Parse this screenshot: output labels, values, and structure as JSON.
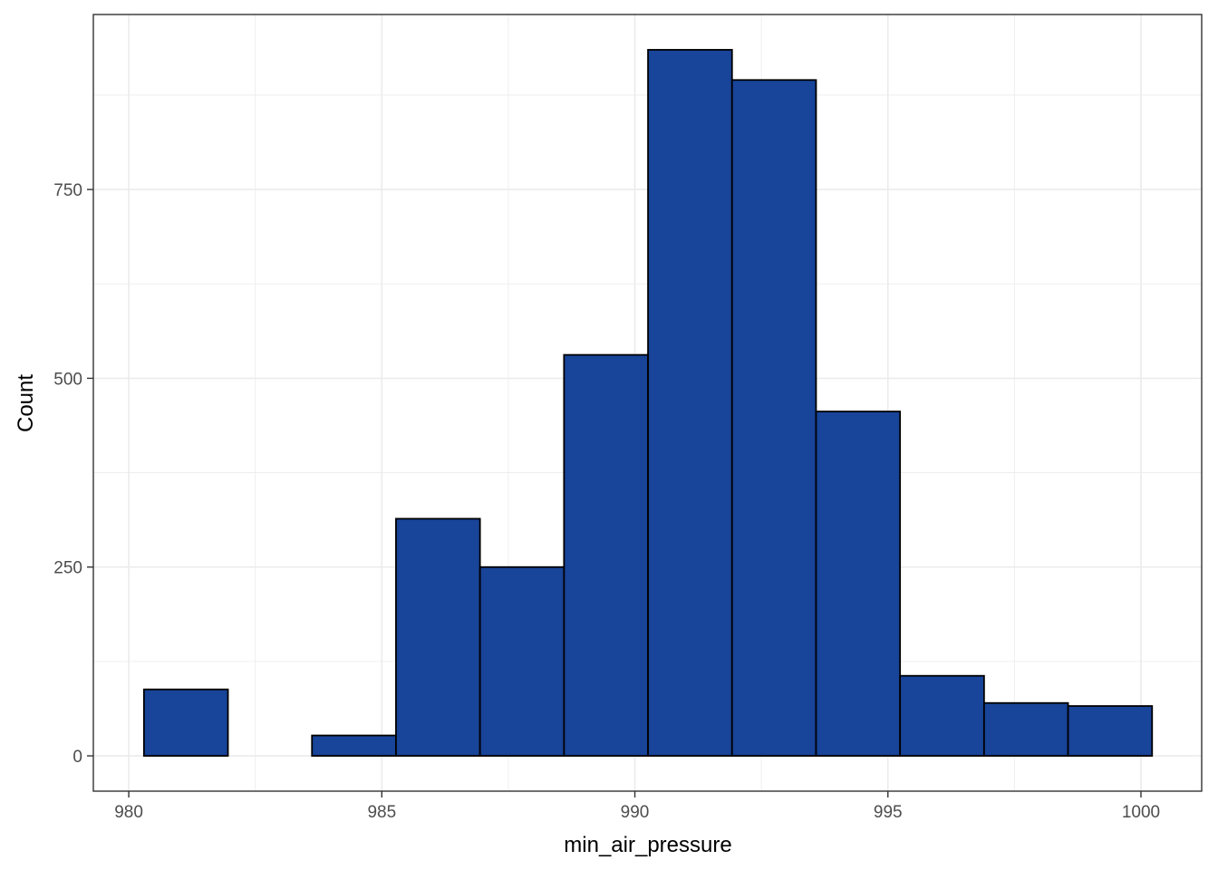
{
  "chart_data": {
    "type": "bar",
    "subtype": "histogram",
    "title": "",
    "xlabel": "min_air_pressure",
    "ylabel": "Count",
    "bins": [
      {
        "x0": 980.3,
        "x1": 981.96,
        "count": 88
      },
      {
        "x0": 981.96,
        "x1": 983.62,
        "count": 0
      },
      {
        "x0": 983.62,
        "x1": 985.28,
        "count": 27
      },
      {
        "x0": 985.28,
        "x1": 986.94,
        "count": 314
      },
      {
        "x0": 986.94,
        "x1": 988.6,
        "count": 250
      },
      {
        "x0": 988.6,
        "x1": 990.26,
        "count": 531
      },
      {
        "x0": 990.26,
        "x1": 991.92,
        "count": 935
      },
      {
        "x0": 991.92,
        "x1": 993.58,
        "count": 895
      },
      {
        "x0": 993.58,
        "x1": 995.24,
        "count": 456
      },
      {
        "x0": 995.24,
        "x1": 996.9,
        "count": 106
      },
      {
        "x0": 996.9,
        "x1": 998.56,
        "count": 70
      },
      {
        "x0": 998.56,
        "x1": 1000.22,
        "count": 66
      }
    ],
    "xlim": [
      979.3,
      1001.2
    ],
    "ylim": [
      -46.75,
      981.75
    ],
    "xticks": [
      980,
      985,
      990,
      995,
      1000
    ],
    "xtick_labels": [
      "980",
      "985",
      "990",
      "995",
      "1000"
    ],
    "yticks": [
      0,
      250,
      500,
      750
    ],
    "ytick_labels": [
      "0",
      "250",
      "500",
      "750"
    ],
    "grid": true,
    "legend": "none",
    "colors": {
      "bar_fill": "#184499",
      "bar_stroke": "#000000",
      "grid": "#ebebeb",
      "panel_border": "#333333"
    }
  }
}
